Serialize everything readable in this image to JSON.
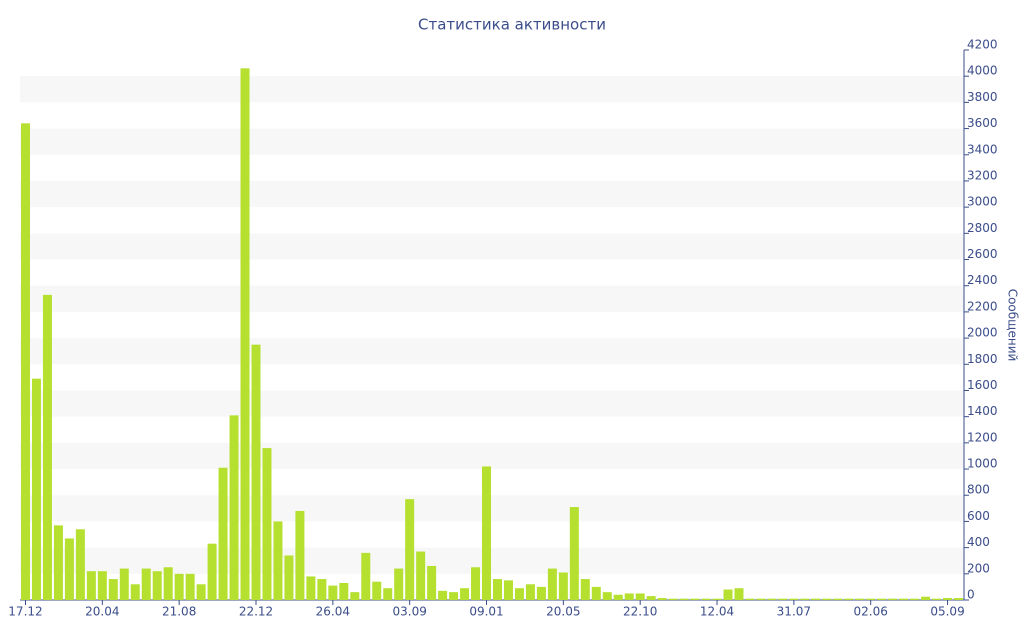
{
  "chart_data": {
    "type": "bar",
    "title": "Статистика активности",
    "y_label": "Сообщений",
    "color": "#b5e02f",
    "categories": [
      "17.12",
      null,
      null,
      null,
      null,
      null,
      null,
      "20.04",
      null,
      null,
      null,
      null,
      null,
      null,
      "21.08",
      null,
      null,
      null,
      null,
      null,
      null,
      "22.12",
      null,
      null,
      null,
      null,
      null,
      null,
      "26.04",
      null,
      null,
      null,
      null,
      null,
      null,
      "03.09",
      null,
      null,
      null,
      null,
      null,
      null,
      "09.01",
      null,
      null,
      null,
      null,
      null,
      null,
      "20.05",
      null,
      null,
      null,
      null,
      null,
      null,
      "22.10",
      null,
      null,
      null,
      null,
      null,
      null,
      "12.04",
      null,
      null,
      null,
      null,
      null,
      null,
      "31.07",
      null,
      null,
      null,
      null,
      null,
      null,
      "02.06",
      null,
      null,
      null,
      null,
      null,
      null,
      "05.09",
      null
    ],
    "values": [
      3640,
      1690,
      2330,
      570,
      470,
      540,
      220,
      220,
      160,
      240,
      120,
      240,
      220,
      250,
      200,
      200,
      120,
      430,
      1010,
      1410,
      4060,
      1950,
      1160,
      600,
      340,
      680,
      180,
      160,
      110,
      130,
      60,
      360,
      140,
      90,
      240,
      770,
      370,
      260,
      70,
      60,
      90,
      250,
      1020,
      160,
      150,
      90,
      120,
      100,
      240,
      210,
      710,
      160,
      100,
      60,
      40,
      50,
      50,
      30,
      15,
      10,
      10,
      10,
      10,
      10,
      80,
      90,
      10,
      10,
      10,
      10,
      10,
      10,
      10,
      10,
      10,
      10,
      10,
      10,
      10,
      10,
      10,
      10,
      25,
      10,
      15,
      15
    ],
    "ylim": [
      0,
      4200
    ],
    "yticks": [
      0,
      200,
      400,
      600,
      800,
      1000,
      1200,
      1400,
      1600,
      1800,
      2000,
      2200,
      2400,
      2600,
      2800,
      3000,
      3200,
      3400,
      3600,
      3800,
      4000,
      4200
    ],
    "grid": "bands",
    "y_axis_side": "right"
  }
}
